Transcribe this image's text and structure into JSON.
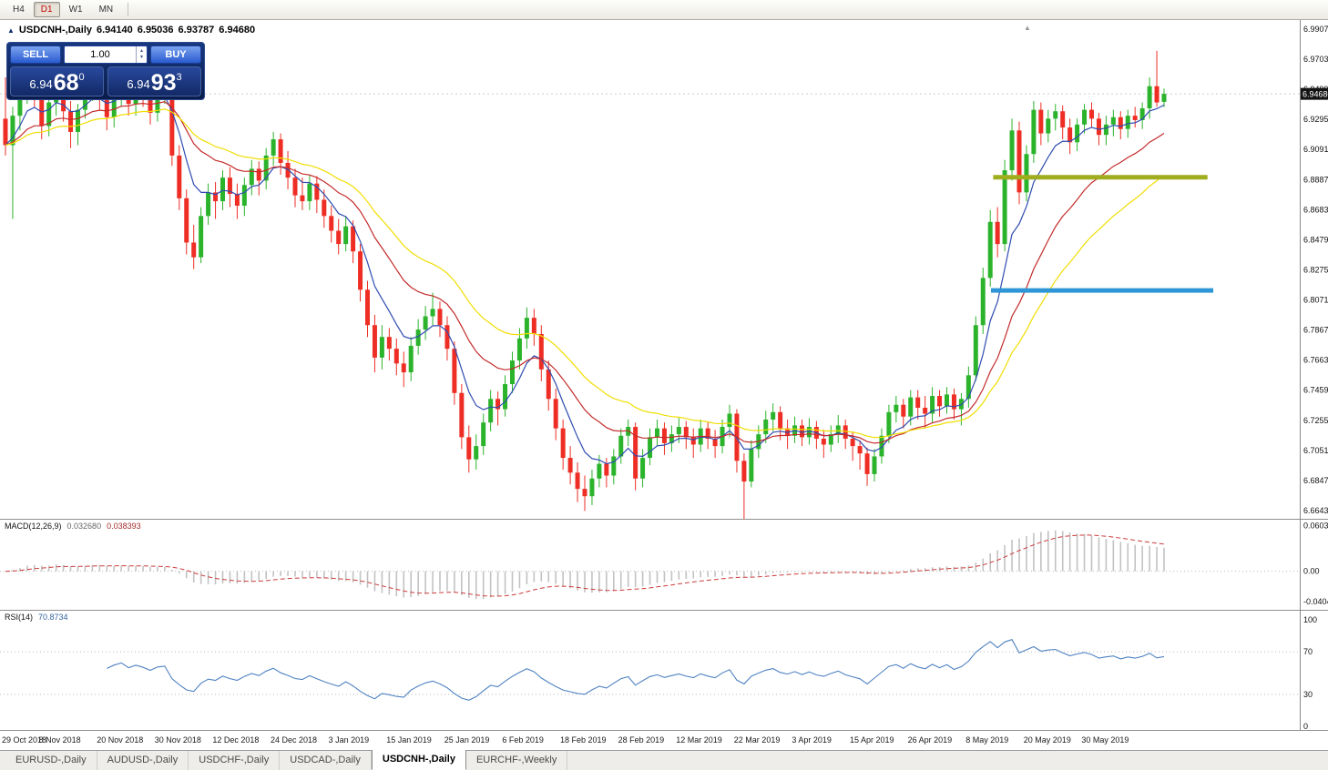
{
  "toolbar": {
    "timeframes": [
      {
        "label": "H4",
        "active": false
      },
      {
        "label": "D1",
        "active": true
      },
      {
        "label": "W1",
        "active": false
      },
      {
        "label": "MN",
        "active": false
      }
    ]
  },
  "chart_header": {
    "symbol_label": "USDCNH-,Daily",
    "open": "6.94140",
    "high": "6.95036",
    "low": "6.93787",
    "close": "6.94680"
  },
  "trade_panel": {
    "sell_label": "SELL",
    "buy_label": "BUY",
    "volume": "1.00",
    "bid_big": "6.94",
    "bid_pips": "68",
    "bid_sup": "0",
    "ask_big": "6.94",
    "ask_pips": "93",
    "ask_sup": "3"
  },
  "icons": {
    "collapse_arrow": "▲",
    "spinner_up": "▴",
    "spinner_down": "▾",
    "scroll_marker": "▲"
  },
  "indicators": {
    "macd": {
      "label": "MACD(12,26,9)",
      "value_main": "0.032680",
      "value_signal": "0.038393"
    },
    "rsi": {
      "label": "RSI(14)",
      "value": "70.8734"
    }
  },
  "tabs": [
    {
      "label": "EURUSD-,Daily",
      "active": false
    },
    {
      "label": "AUDUSD-,Daily",
      "active": false
    },
    {
      "label": "USDCHF-,Daily",
      "active": false
    },
    {
      "label": "USDCAD-,Daily",
      "active": false
    },
    {
      "label": "USDCNH-,Daily",
      "active": true
    },
    {
      "label": "EURCHF-,Weekly",
      "active": false
    }
  ],
  "chart_data": {
    "type": "candlestick",
    "title": "USDCNH-,Daily",
    "y_axis": {
      "ticks": [
        "6.99070",
        "6.97030",
        "6.94990",
        "6.92950",
        "6.90910",
        "6.88870",
        "6.86830",
        "6.84790",
        "6.82750",
        "6.80710",
        "6.78670",
        "6.76630",
        "6.74590",
        "6.72550",
        "6.70510",
        "6.68470",
        "6.66430"
      ],
      "price_top": 6.99687,
      "price_bottom": 6.6587,
      "current_price": 6.9468,
      "current_price_label": "6.94680"
    },
    "x_labels": [
      {
        "bar": 0,
        "label": "29 Oct 2018"
      },
      {
        "bar": 8,
        "label": "8 Nov 2018"
      },
      {
        "bar": 16,
        "label": "20 Nov 2018"
      },
      {
        "bar": 24,
        "label": "30 Nov 2018"
      },
      {
        "bar": 32,
        "label": "12 Dec 2018"
      },
      {
        "bar": 40,
        "label": "24 Dec 2018"
      },
      {
        "bar": 48,
        "label": "3 Jan 2019"
      },
      {
        "bar": 56,
        "label": "15 Jan 2019"
      },
      {
        "bar": 64,
        "label": "25 Jan 2019"
      },
      {
        "bar": 72,
        "label": "6 Feb 2019"
      },
      {
        "bar": 80,
        "label": "18 Feb 2019"
      },
      {
        "bar": 88,
        "label": "28 Feb 2019"
      },
      {
        "bar": 96,
        "label": "12 Mar 2019"
      },
      {
        "bar": 104,
        "label": "22 Mar 2019"
      },
      {
        "bar": 112,
        "label": "3 Apr 2019"
      },
      {
        "bar": 120,
        "label": "15 Apr 2019"
      },
      {
        "bar": 128,
        "label": "26 Apr 2019"
      },
      {
        "bar": 136,
        "label": "8 May 2019"
      },
      {
        "bar": 144,
        "label": "20 May 2019"
      },
      {
        "bar": 152,
        "label": "30 May 2019"
      }
    ],
    "colors": {
      "up": "#2bb32b",
      "down": "#ee2e24"
    },
    "moving_averages": [
      {
        "period": 7,
        "color": "#2f4cb0",
        "name": "ma-fast-blue"
      },
      {
        "period": 18,
        "color": "#c42b2b",
        "name": "ma-mid-red"
      },
      {
        "period": 30,
        "color": "#f0de00",
        "name": "ma-slow-yellow"
      }
    ],
    "drawn_lines": [
      {
        "name": "resistance-line-green",
        "price": 6.8903,
        "bar_start": 136.4,
        "bar_end": 166,
        "color": "#a0ad1f",
        "width": 5
      },
      {
        "name": "support-line-blue",
        "price": 6.8135,
        "bar_start": 136.1,
        "bar_end": 166.8,
        "color": "#2e96d6",
        "width": 5
      }
    ],
    "macd": {
      "fast": 12,
      "slow": 26,
      "signal": 9,
      "scale_top": 0.0696,
      "scale_bottom": -0.0511,
      "axis_ticks": [
        {
          "v": 0.060342,
          "label": "0.060342"
        },
        {
          "v": 0,
          "label": "0.00"
        },
        {
          "v": -0.04041,
          "label": "-0.04041"
        }
      ]
    },
    "rsi": {
      "period": 14,
      "levels": [
        70,
        30
      ],
      "axis_ticks": [
        100,
        70,
        30,
        0
      ]
    },
    "candles": [
      [
        6.93,
        6.958,
        6.905,
        6.912
      ],
      [
        6.912,
        6.938,
        6.862,
        6.932
      ],
      [
        6.932,
        6.956,
        6.922,
        6.95
      ],
      [
        6.95,
        6.972,
        6.94,
        6.965
      ],
      [
        6.965,
        6.97,
        6.938,
        6.945
      ],
      [
        6.945,
        6.952,
        6.916,
        6.925
      ],
      [
        6.925,
        6.948,
        6.918,
        6.941
      ],
      [
        6.941,
        6.962,
        6.932,
        6.955
      ],
      [
        6.955,
        6.96,
        6.928,
        6.935
      ],
      [
        6.935,
        6.942,
        6.91,
        6.921
      ],
      [
        6.921,
        6.94,
        6.912,
        6.936
      ],
      [
        6.936,
        6.958,
        6.93,
        6.951
      ],
      [
        6.951,
        6.964,
        6.942,
        6.956
      ],
      [
        6.956,
        6.962,
        6.936,
        6.944
      ],
      [
        6.944,
        6.95,
        6.922,
        6.931
      ],
      [
        6.931,
        6.95,
        6.924,
        6.946
      ],
      [
        6.946,
        6.963,
        6.938,
        6.956
      ],
      [
        6.956,
        6.961,
        6.932,
        6.94
      ],
      [
        6.94,
        6.956,
        6.932,
        6.951
      ],
      [
        6.951,
        6.958,
        6.938,
        6.944
      ],
      [
        6.944,
        6.951,
        6.926,
        6.934
      ],
      [
        6.934,
        6.952,
        6.928,
        6.947
      ],
      [
        6.947,
        6.958,
        6.94,
        6.95
      ],
      [
        6.95,
        6.954,
        6.898,
        6.905
      ],
      [
        6.905,
        6.912,
        6.868,
        6.876
      ],
      [
        6.876,
        6.882,
        6.838,
        6.846
      ],
      [
        6.846,
        6.858,
        6.828,
        6.836
      ],
      [
        6.836,
        6.87,
        6.832,
        6.864
      ],
      [
        6.864,
        6.886,
        6.858,
        6.88
      ],
      [
        6.88,
        6.887,
        6.862,
        6.874
      ],
      [
        6.874,
        6.895,
        6.868,
        6.89
      ],
      [
        6.89,
        6.897,
        6.87,
        6.879
      ],
      [
        6.879,
        6.886,
        6.862,
        6.871
      ],
      [
        6.871,
        6.89,
        6.864,
        6.885
      ],
      [
        6.885,
        6.902,
        6.878,
        6.896
      ],
      [
        6.896,
        6.901,
        6.878,
        6.888
      ],
      [
        6.888,
        6.91,
        6.882,
        6.905
      ],
      [
        6.905,
        6.921,
        6.898,
        6.916
      ],
      [
        6.916,
        6.92,
        6.892,
        6.9
      ],
      [
        6.9,
        6.908,
        6.882,
        6.89
      ],
      [
        6.89,
        6.896,
        6.87,
        6.878
      ],
      [
        6.878,
        6.89,
        6.868,
        6.874
      ],
      [
        6.874,
        6.892,
        6.868,
        6.886
      ],
      [
        6.886,
        6.891,
        6.866,
        6.875
      ],
      [
        6.875,
        6.882,
        6.856,
        6.864
      ],
      [
        6.864,
        6.871,
        6.846,
        6.854
      ],
      [
        6.854,
        6.862,
        6.838,
        6.845
      ],
      [
        6.845,
        6.864,
        6.84,
        6.857
      ],
      [
        6.857,
        6.861,
        6.832,
        6.84
      ],
      [
        6.84,
        6.845,
        6.806,
        6.814
      ],
      [
        6.814,
        6.82,
        6.782,
        6.79
      ],
      [
        6.79,
        6.797,
        6.758,
        6.768
      ],
      [
        6.768,
        6.79,
        6.76,
        6.782
      ],
      [
        6.782,
        6.788,
        6.766,
        6.774
      ],
      [
        6.774,
        6.781,
        6.756,
        6.764
      ],
      [
        6.764,
        6.772,
        6.748,
        6.758
      ],
      [
        6.758,
        6.782,
        6.752,
        6.776
      ],
      [
        6.776,
        6.794,
        6.77,
        6.787
      ],
      [
        6.787,
        6.803,
        6.78,
        6.796
      ],
      [
        6.796,
        6.812,
        6.79,
        6.801
      ],
      [
        6.801,
        6.806,
        6.782,
        6.79
      ],
      [
        6.79,
        6.796,
        6.766,
        6.774
      ],
      [
        6.774,
        6.779,
        6.736,
        6.744
      ],
      [
        6.744,
        6.75,
        6.706,
        6.714
      ],
      [
        6.714,
        6.722,
        6.69,
        6.699
      ],
      [
        6.699,
        6.716,
        6.692,
        6.708
      ],
      [
        6.708,
        6.73,
        6.702,
        6.724
      ],
      [
        6.724,
        6.746,
        6.718,
        6.74
      ],
      [
        6.74,
        6.745,
        6.722,
        6.733
      ],
      [
        6.733,
        6.756,
        6.728,
        6.75
      ],
      [
        6.75,
        6.772,
        6.744,
        6.766
      ],
      [
        6.766,
        6.788,
        6.76,
        6.781
      ],
      [
        6.781,
        6.802,
        6.774,
        6.795
      ],
      [
        6.795,
        6.801,
        6.776,
        6.784
      ],
      [
        6.784,
        6.79,
        6.752,
        6.76
      ],
      [
        6.76,
        6.766,
        6.732,
        6.74
      ],
      [
        6.74,
        6.747,
        6.712,
        6.72
      ],
      [
        6.72,
        6.726,
        6.692,
        6.7
      ],
      [
        6.7,
        6.708,
        6.682,
        6.69
      ],
      [
        6.69,
        6.697,
        6.67,
        6.679
      ],
      [
        6.679,
        6.688,
        6.664,
        6.674
      ],
      [
        6.674,
        6.692,
        6.668,
        6.686
      ],
      [
        6.686,
        6.702,
        6.68,
        6.696
      ],
      [
        6.696,
        6.7,
        6.68,
        6.688
      ],
      [
        6.688,
        6.706,
        6.682,
        6.701
      ],
      [
        6.701,
        6.72,
        6.696,
        6.715
      ],
      [
        6.715,
        6.726,
        6.708,
        6.721
      ],
      [
        6.721,
        6.724,
        6.678,
        6.686
      ],
      [
        6.686,
        6.706,
        6.68,
        6.7
      ],
      [
        6.7,
        6.72,
        6.695,
        6.714
      ],
      [
        6.714,
        6.726,
        6.708,
        6.72
      ],
      [
        6.72,
        6.724,
        6.702,
        6.71
      ],
      [
        6.71,
        6.722,
        6.704,
        6.716
      ],
      [
        6.716,
        6.727,
        6.71,
        6.721
      ],
      [
        6.721,
        6.725,
        6.706,
        6.714
      ],
      [
        6.714,
        6.72,
        6.7,
        6.709
      ],
      [
        6.709,
        6.726,
        6.704,
        6.72
      ],
      [
        6.72,
        6.724,
        6.706,
        6.713
      ],
      [
        6.713,
        6.719,
        6.7,
        6.708
      ],
      [
        6.708,
        6.726,
        6.703,
        6.721
      ],
      [
        6.721,
        6.736,
        6.714,
        6.73
      ],
      [
        6.73,
        6.733,
        6.69,
        6.698
      ],
      [
        6.698,
        6.703,
        6.656,
        6.684
      ],
      [
        6.684,
        6.712,
        6.68,
        6.706
      ],
      [
        6.706,
        6.722,
        6.7,
        6.716
      ],
      [
        6.716,
        6.732,
        6.71,
        6.726
      ],
      [
        6.726,
        6.737,
        6.718,
        6.731
      ],
      [
        6.731,
        6.735,
        6.712,
        6.72
      ],
      [
        6.72,
        6.726,
        6.706,
        6.715
      ],
      [
        6.715,
        6.728,
        6.71,
        6.722
      ],
      [
        6.722,
        6.726,
        6.708,
        6.714
      ],
      [
        6.714,
        6.727,
        6.709,
        6.721
      ],
      [
        6.721,
        6.725,
        6.706,
        6.713
      ],
      [
        6.713,
        6.719,
        6.7,
        6.709
      ],
      [
        6.709,
        6.722,
        6.704,
        6.716
      ],
      [
        6.716,
        6.729,
        6.71,
        6.722
      ],
      [
        6.722,
        6.726,
        6.706,
        6.713
      ],
      [
        6.713,
        6.718,
        6.698,
        6.708
      ],
      [
        6.708,
        6.712,
        6.692,
        6.703
      ],
      [
        6.703,
        6.707,
        6.681,
        6.689
      ],
      [
        6.689,
        6.706,
        6.684,
        6.701
      ],
      [
        6.701,
        6.72,
        6.696,
        6.715
      ],
      [
        6.715,
        6.736,
        6.71,
        6.731
      ],
      [
        6.731,
        6.742,
        6.724,
        6.736
      ],
      [
        6.736,
        6.74,
        6.72,
        6.728
      ],
      [
        6.728,
        6.746,
        6.722,
        6.741
      ],
      [
        6.741,
        6.746,
        6.726,
        6.734
      ],
      [
        6.734,
        6.742,
        6.72,
        6.73
      ],
      [
        6.73,
        6.748,
        6.724,
        6.742
      ],
      [
        6.742,
        6.746,
        6.728,
        6.735
      ],
      [
        6.735,
        6.748,
        6.73,
        6.743
      ],
      [
        6.743,
        6.747,
        6.726,
        6.733
      ],
      [
        6.733,
        6.744,
        6.722,
        6.74
      ],
      [
        6.74,
        6.762,
        6.734,
        6.756
      ],
      [
        6.756,
        6.796,
        6.752,
        6.79
      ],
      [
        6.79,
        6.829,
        6.784,
        6.822
      ],
      [
        6.822,
        6.868,
        6.816,
        6.86
      ],
      [
        6.86,
        6.87,
        6.836,
        6.845
      ],
      [
        6.845,
        6.902,
        6.84,
        6.895
      ],
      [
        6.895,
        6.93,
        6.888,
        6.922
      ],
      [
        6.922,
        6.928,
        6.872,
        6.88
      ],
      [
        6.88,
        6.912,
        6.874,
        6.906
      ],
      [
        6.906,
        6.942,
        6.9,
        6.936
      ],
      [
        6.936,
        6.941,
        6.912,
        6.92
      ],
      [
        6.92,
        6.936,
        6.914,
        6.93
      ],
      [
        6.93,
        6.94,
        6.922,
        6.935
      ],
      [
        6.935,
        6.939,
        6.916,
        6.924
      ],
      [
        6.924,
        6.93,
        6.906,
        6.914
      ],
      [
        6.914,
        6.93,
        6.908,
        6.926
      ],
      [
        6.926,
        6.94,
        6.92,
        6.936
      ],
      [
        6.936,
        6.941,
        6.924,
        6.93
      ],
      [
        6.93,
        6.934,
        6.912,
        6.919
      ],
      [
        6.919,
        6.932,
        6.912,
        6.926
      ],
      [
        6.926,
        6.936,
        6.918,
        6.931
      ],
      [
        6.931,
        6.935,
        6.916,
        6.923
      ],
      [
        6.923,
        6.936,
        6.917,
        6.932
      ],
      [
        6.932,
        6.938,
        6.924,
        6.929
      ],
      [
        6.929,
        6.941,
        6.923,
        6.937
      ],
      [
        6.937,
        6.958,
        6.93,
        6.952
      ],
      [
        6.952,
        6.976,
        6.938,
        6.941
      ],
      [
        6.9414,
        6.95036,
        6.93787,
        6.9468
      ]
    ]
  }
}
